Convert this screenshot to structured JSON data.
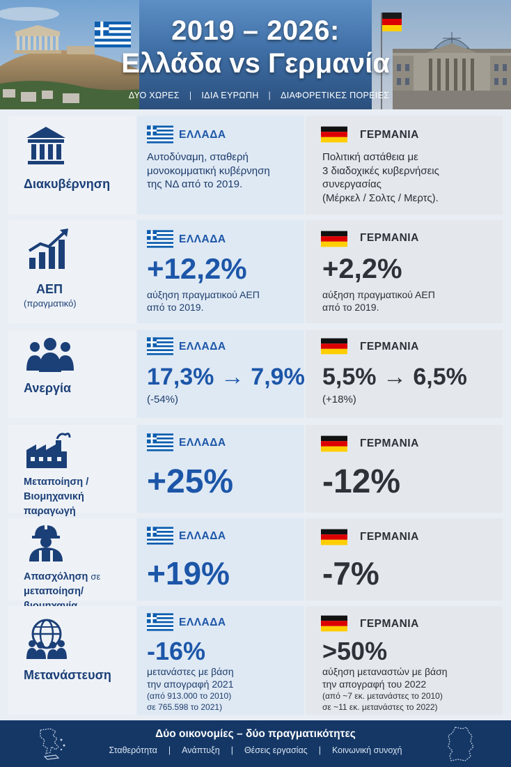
{
  "header": {
    "title_line1": "2019 – 2026:",
    "title_line2": "Ελλάδα vs Γερμανία",
    "tagline": [
      "ΔΥΟ ΧΩΡΕΣ",
      "ΙΔΙΑ ΕΥΡΩΠΗ",
      "ΔΙΑΦΟΡΕΤΙΚΕΣ ΠΟΡΕΙΕΣ"
    ],
    "separator": "|"
  },
  "countries": {
    "gr": "ΕΛΛΑΔΑ",
    "de": "ΓΕΡΜΑΝΙΑ"
  },
  "colors": {
    "greece_blue": "#1c56a8",
    "germany_dark": "#2e3238",
    "navy": "#143766"
  },
  "rows": {
    "governance": {
      "label": "Διακυβέρνηση",
      "icon": "government-building-icon",
      "gr_lines": [
        "Αυτοδύναμη, σταθερή",
        "μονοκομματική κυβέρνηση",
        "της ΝΔ από το 2019."
      ],
      "de_lines": [
        "Πολιτική αστάθεια με",
        "3 διαδοχικές κυβερνήσεις",
        "συνεργασίας",
        "(Μέρκελ / Σολτς / Μερτς)."
      ]
    },
    "gdp": {
      "label": "ΑΕΠ",
      "sublabel": "(πραγματικό)",
      "icon": "growth-chart-icon",
      "gr_value": "+12,2%",
      "gr_lines": [
        "αύξηση πραγματικού ΑΕΠ",
        "από το 2019."
      ],
      "de_value": "+2,2%",
      "de_lines": [
        "αύξηση πραγματικού ΑΕΠ",
        "από το 2019."
      ]
    },
    "unemployment": {
      "label": "Ανεργία",
      "icon": "people-group-icon",
      "gr_value": "17,3% → 7,9%",
      "gr_note": "(-54%)",
      "de_value": "5,5% → 6,5%",
      "de_note": "(+18%)"
    },
    "manufacturing": {
      "label_lines": [
        "Μεταποίηση /",
        "Βιομηχανική παραγωγή"
      ],
      "icon": "factory-icon",
      "gr_value": "+25%",
      "de_value": "-12%"
    },
    "employment": {
      "label_main": "Απασχόληση",
      "label_suffix": "σε",
      "label_line2": "μεταποίηση/βιομηχανία",
      "icon": "worker-helmet-icon",
      "gr_value": "+19%",
      "de_value": "-7%"
    },
    "migration": {
      "label": "Μετανάστευση",
      "icon": "globe-people-icon",
      "gr_value": "-16%",
      "gr_lines": [
        "μετανάστες με βάση",
        "την απογραφή 2021"
      ],
      "gr_small": [
        "(από 913.000 το 2010)",
        "σε 765.598 το 2021)"
      ],
      "de_value": ">50%",
      "de_lines": [
        "αύξηση μεταναστών με βάση",
        "την απογραφή του 2022"
      ],
      "de_small": [
        "(από ~7 εκ. μετανάστες το 2010)",
        "σε ~11 εκ. μετανάστες το 2022)"
      ]
    }
  },
  "footer": {
    "title": "Δύο οικονομίες – δύο πραγματικότητες",
    "items": [
      "Σταθερότητα",
      "Ανάπτυξη",
      "Θέσεις εργασίας",
      "Κοινωνική συνοχή"
    ],
    "separator": "|"
  }
}
